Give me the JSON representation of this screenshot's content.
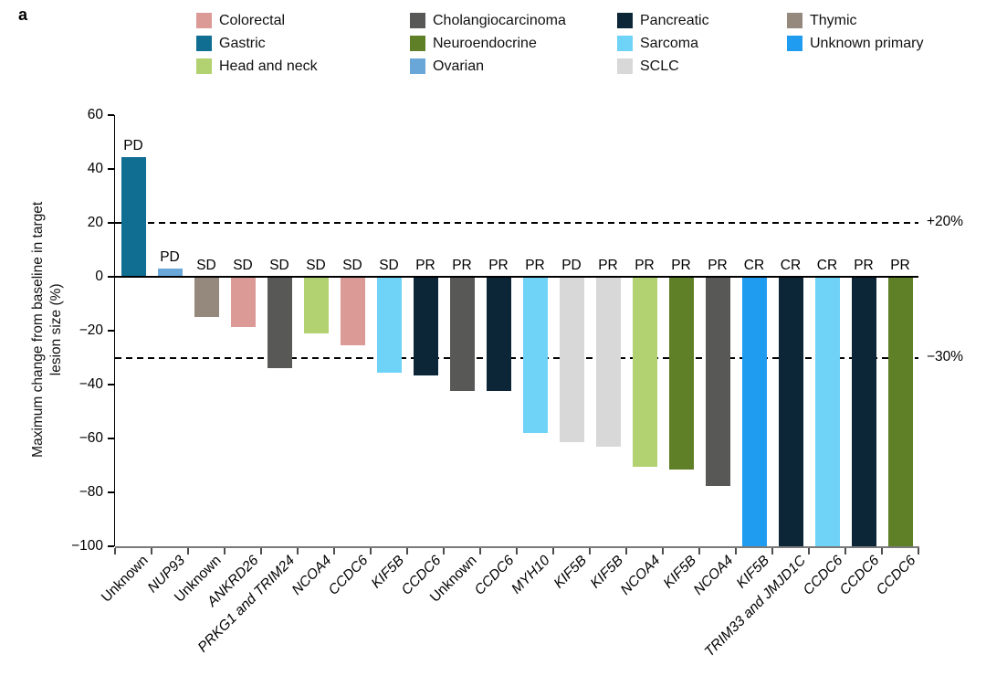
{
  "panel_label": "a",
  "legend": {
    "position": "top",
    "columns": [
      {
        "items": [
          {
            "label": "Colorectal",
            "color": "#dc9a97"
          },
          {
            "label": "Gastric",
            "color": "#106e92"
          },
          {
            "label": "Head and neck",
            "color": "#b2d171"
          }
        ]
      },
      {
        "items": [
          {
            "label": "Cholangiocarcinoma",
            "color": "#585856"
          },
          {
            "label": "Neuroendocrine",
            "color": "#5f8027"
          },
          {
            "label": "Ovarian",
            "color": "#69a7d8"
          }
        ]
      },
      {
        "items": [
          {
            "label": "Pancreatic",
            "color": "#0c2638"
          },
          {
            "label": "Sarcoma",
            "color": "#6fd3f7"
          },
          {
            "label": "SCLC",
            "color": "#d8d8d8"
          }
        ]
      },
      {
        "items": [
          {
            "label": "Thymic",
            "color": "#94897c"
          },
          {
            "label": "Unknown primary",
            "color": "#1f9cf0"
          }
        ]
      }
    ]
  },
  "chart_data": {
    "type": "bar",
    "title": "",
    "xlabel": "",
    "ylabel": "Maximum change from baseline in target lesion size (%)",
    "ylabel_lines": [
      "Maximum change from baseline in target",
      "lesion size (%)"
    ],
    "ylim": [
      -100,
      60
    ],
    "yticks": [
      60,
      40,
      20,
      0,
      -20,
      -40,
      -60,
      -80,
      -100
    ],
    "grid": false,
    "reference_lines": [
      {
        "value": 20,
        "label": "+20%"
      },
      {
        "value": -30,
        "label": "−30%"
      }
    ],
    "bars": [
      {
        "fusion_partner": "Unknown",
        "italic": false,
        "cancer_type": "Gastric",
        "value": 44.5,
        "response": "PD"
      },
      {
        "fusion_partner": "NUP93",
        "italic": true,
        "cancer_type": "Ovarian",
        "value": 3,
        "response": "PD"
      },
      {
        "fusion_partner": "Unknown",
        "italic": false,
        "cancer_type": "Thymic",
        "value": -15,
        "response": "SD"
      },
      {
        "fusion_partner": "ANKRD26",
        "italic": true,
        "cancer_type": "Colorectal",
        "value": -18.5,
        "response": "SD"
      },
      {
        "fusion_partner": "PRKG1 and TRIM24",
        "italic": true,
        "cancer_type": "Cholangiocarcinoma",
        "value": -34,
        "response": "SD"
      },
      {
        "fusion_partner": "NCOA4",
        "italic": true,
        "cancer_type": "Head and neck",
        "value": -21,
        "response": "SD"
      },
      {
        "fusion_partner": "CCDC6",
        "italic": true,
        "cancer_type": "Colorectal",
        "value": -25.5,
        "response": "SD"
      },
      {
        "fusion_partner": "KIF5B",
        "italic": true,
        "cancer_type": "Sarcoma",
        "value": -35.5,
        "response": "SD"
      },
      {
        "fusion_partner": "CCDC6",
        "italic": true,
        "cancer_type": "Pancreatic",
        "value": -36.5,
        "response": "PR"
      },
      {
        "fusion_partner": "Unknown",
        "italic": false,
        "cancer_type": "Cholangiocarcinoma",
        "value": -42.5,
        "response": "PR"
      },
      {
        "fusion_partner": "CCDC6",
        "italic": true,
        "cancer_type": "Pancreatic",
        "value": -42.5,
        "response": "PR"
      },
      {
        "fusion_partner": "MYH10",
        "italic": true,
        "cancer_type": "Sarcoma",
        "value": -58,
        "response": "PR"
      },
      {
        "fusion_partner": "KIF5B",
        "italic": true,
        "cancer_type": "SCLC",
        "value": -61.5,
        "response": "PD"
      },
      {
        "fusion_partner": "KIF5B",
        "italic": true,
        "cancer_type": "SCLC",
        "value": -63,
        "response": "PR"
      },
      {
        "fusion_partner": "NCOA4",
        "italic": true,
        "cancer_type": "Head and neck",
        "value": -70.5,
        "response": "PR"
      },
      {
        "fusion_partner": "KIF5B",
        "italic": true,
        "cancer_type": "Neuroendocrine",
        "value": -71.5,
        "response": "PR"
      },
      {
        "fusion_partner": "NCOA4",
        "italic": true,
        "cancer_type": "Cholangiocarcinoma",
        "value": -77.5,
        "response": "PR"
      },
      {
        "fusion_partner": "KIF5B",
        "italic": true,
        "cancer_type": "Unknown primary",
        "value": -100,
        "response": "CR"
      },
      {
        "fusion_partner": "TRIM33 and JMJD1C",
        "italic": true,
        "cancer_type": "Pancreatic",
        "value": -100,
        "response": "CR"
      },
      {
        "fusion_partner": "CCDC6",
        "italic": true,
        "cancer_type": "Sarcoma",
        "value": -100,
        "response": "CR"
      },
      {
        "fusion_partner": "CCDC6",
        "italic": true,
        "cancer_type": "Pancreatic",
        "value": -100,
        "response": "PR"
      },
      {
        "fusion_partner": "CCDC6",
        "italic": true,
        "cancer_type": "Neuroendocrine",
        "value": -100,
        "response": "PR"
      }
    ]
  }
}
